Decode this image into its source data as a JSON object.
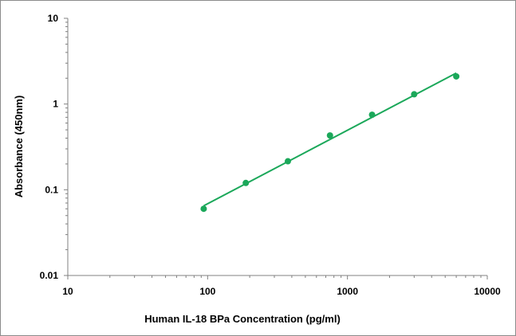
{
  "chart_data": {
    "type": "scatter",
    "title": "",
    "xlabel": "Human IL-18 BPa Concentration (pg/ml)",
    "ylabel": "Absorbance (450nm)",
    "x_scale": "log",
    "y_scale": "log",
    "xlim": [
      10,
      10000
    ],
    "ylim": [
      0.01,
      10
    ],
    "x_ticks": [
      "10",
      "100",
      "1000",
      "10000"
    ],
    "y_ticks": [
      "0.01",
      "0.1",
      "1",
      "10"
    ],
    "grid": false,
    "legend": "none",
    "points": {
      "x": [
        93.75,
        187.5,
        375,
        750,
        1500,
        3000,
        6000
      ],
      "y": [
        0.06,
        0.12,
        0.215,
        0.43,
        0.75,
        1.3,
        2.1
      ]
    },
    "trendline": {
      "type": "power",
      "x": [
        93.75,
        6000
      ],
      "y": [
        0.065,
        2.3
      ]
    },
    "colors": {
      "series": "#1ba85a",
      "axis": "#808080",
      "text": "#000000"
    }
  }
}
